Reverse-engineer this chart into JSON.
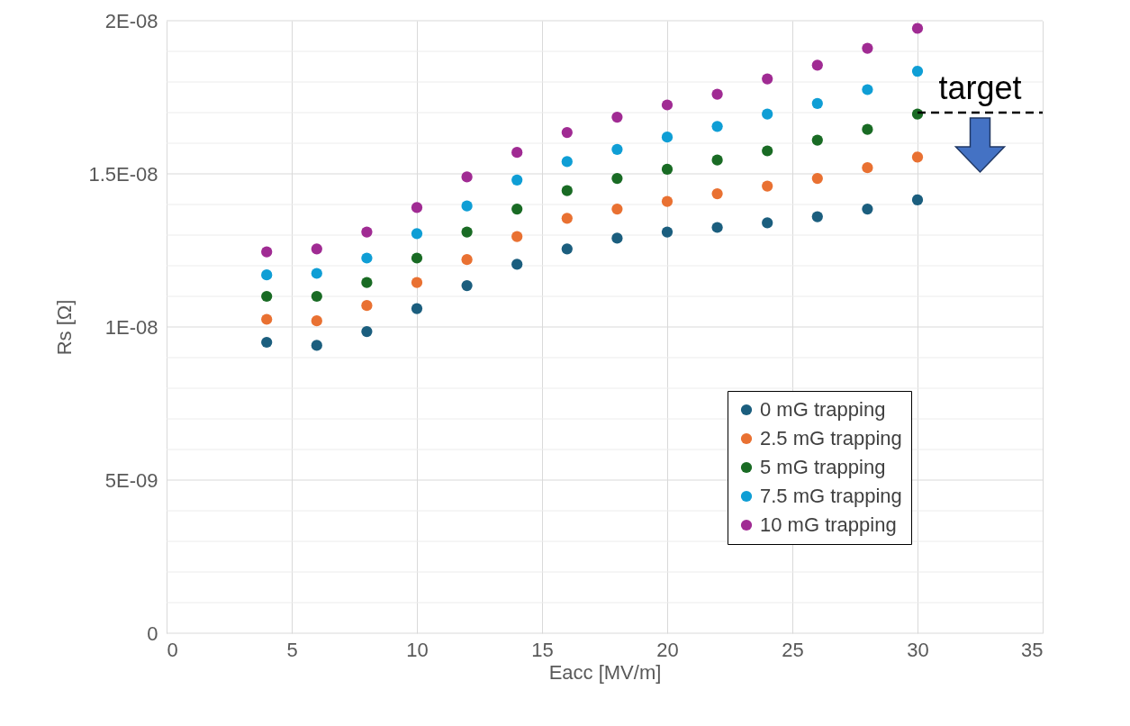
{
  "chart_data": {
    "type": "scatter",
    "xlabel": "Eacc [MV/m]",
    "ylabel": "Rs [Ω]",
    "x": [
      4,
      6,
      8,
      10,
      12,
      14,
      16,
      18,
      20,
      22,
      24,
      26,
      28,
      30
    ],
    "series": [
      {
        "name": "0 mG trapping",
        "color": "#1b5e7e",
        "values": [
          9.5e-09,
          9.4e-09,
          9.85e-09,
          1.06e-08,
          1.135e-08,
          1.205e-08,
          1.255e-08,
          1.29e-08,
          1.31e-08,
          1.325e-08,
          1.34e-08,
          1.36e-08,
          1.385e-08,
          1.415e-08
        ]
      },
      {
        "name": "2.5 mG trapping",
        "color": "#e97132",
        "values": [
          1.025e-08,
          1.02e-08,
          1.07e-08,
          1.145e-08,
          1.22e-08,
          1.295e-08,
          1.355e-08,
          1.385e-08,
          1.41e-08,
          1.435e-08,
          1.46e-08,
          1.485e-08,
          1.52e-08,
          1.555e-08
        ]
      },
      {
        "name": "5 mG trapping",
        "color": "#196b24",
        "values": [
          1.1e-08,
          1.1e-08,
          1.145e-08,
          1.225e-08,
          1.31e-08,
          1.385e-08,
          1.445e-08,
          1.485e-08,
          1.515e-08,
          1.545e-08,
          1.575e-08,
          1.61e-08,
          1.645e-08,
          1.695e-08
        ]
      },
      {
        "name": "7.5 mG trapping",
        "color": "#0f9ed5",
        "values": [
          1.17e-08,
          1.175e-08,
          1.225e-08,
          1.305e-08,
          1.395e-08,
          1.48e-08,
          1.54e-08,
          1.58e-08,
          1.62e-08,
          1.655e-08,
          1.695e-08,
          1.73e-08,
          1.775e-08,
          1.835e-08
        ]
      },
      {
        "name": "10 mG trapping",
        "color": "#a02b93",
        "values": [
          1.245e-08,
          1.255e-08,
          1.31e-08,
          1.39e-08,
          1.49e-08,
          1.57e-08,
          1.635e-08,
          1.685e-08,
          1.725e-08,
          1.76e-08,
          1.81e-08,
          1.855e-08,
          1.91e-08,
          1.975e-08
        ]
      }
    ],
    "xlim": [
      0,
      35
    ],
    "xticks": [
      0,
      5,
      10,
      15,
      20,
      25,
      30,
      35
    ],
    "ylim": [
      0,
      2e-08
    ],
    "yticks": [
      0,
      {
        "value": 1e-09,
        "label": null
      },
      {
        "value": 2e-09,
        "label": null
      },
      {
        "value": 3e-09,
        "label": null
      },
      {
        "value": 4e-09,
        "label": null
      },
      {
        "value": 5e-09,
        "label": "5E-09"
      },
      {
        "value": 6e-09,
        "label": null
      },
      {
        "value": 7e-09,
        "label": null
      },
      {
        "value": 8e-09,
        "label": null
      },
      {
        "value": 9e-09,
        "label": null
      },
      {
        "value": 1e-08,
        "label": "1E-08"
      },
      {
        "value": 1.1e-08,
        "label": null
      },
      {
        "value": 1.2e-08,
        "label": null
      },
      {
        "value": 1.3e-08,
        "label": null
      },
      {
        "value": 1.4e-08,
        "label": null
      },
      {
        "value": 1.5e-08,
        "label": "1.5E-08"
      },
      {
        "value": 1.6e-08,
        "label": null
      },
      {
        "value": 1.7e-08,
        "label": null
      },
      {
        "value": 1.8e-08,
        "label": null
      },
      {
        "value": 1.9e-08,
        "label": null
      },
      {
        "value": 2e-08,
        "label": "2E-08"
      }
    ],
    "ref_lines": [
      {
        "axis": "y",
        "value": 1.7e-08,
        "label": "target",
        "color": "#000000",
        "line_style": "dashed"
      }
    ],
    "grid": true,
    "legend": "bottom right",
    "marker": "circle"
  }
}
